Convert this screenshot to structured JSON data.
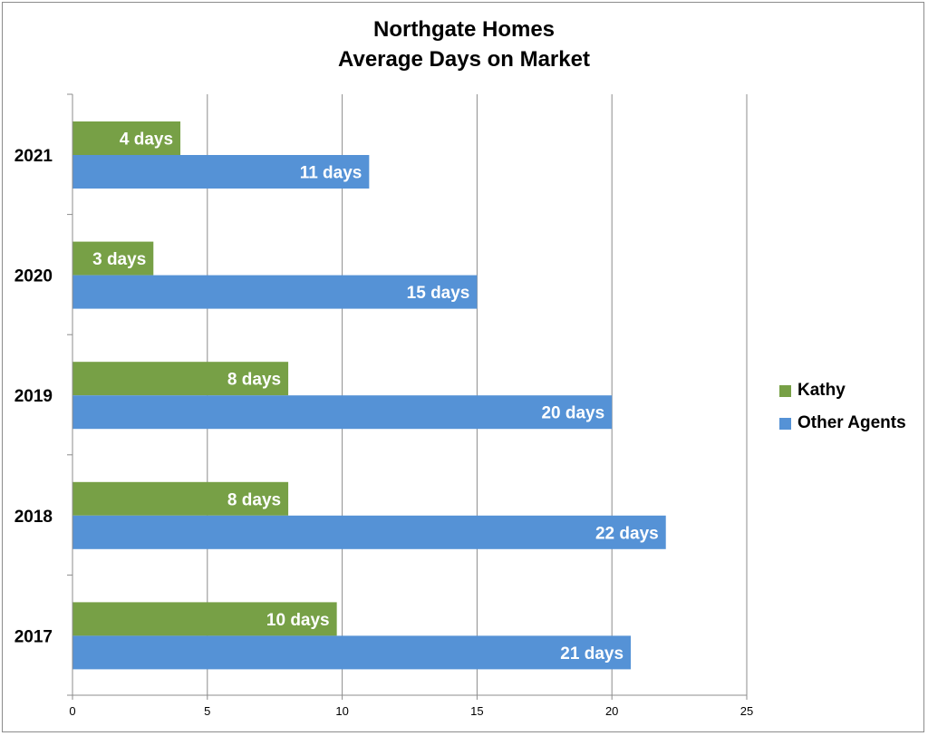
{
  "chart_data": {
    "type": "bar",
    "orientation": "horizontal",
    "title": [
      "Northgate Homes",
      "Average Days on Market"
    ],
    "categories": [
      "2021",
      "2020",
      "2019",
      "2018",
      "2017"
    ],
    "series": [
      {
        "name": "Kathy",
        "color": "#77a046",
        "values": [
          4,
          3,
          8,
          8,
          9.8
        ],
        "labels": [
          "4 days",
          "3 days",
          "8 days",
          "8 days",
          "10 days"
        ]
      },
      {
        "name": "Other Agents",
        "color": "#5592d6",
        "values": [
          11,
          15,
          20,
          22,
          20.7
        ],
        "labels": [
          "11 days",
          "15 days",
          "20 days",
          "22 days",
          "21 days"
        ]
      }
    ],
    "xticks": [
      "0",
      "5",
      "10",
      "15",
      "20",
      "25"
    ],
    "xlim": [
      0,
      25
    ],
    "grid": true,
    "legend_position": "right"
  }
}
